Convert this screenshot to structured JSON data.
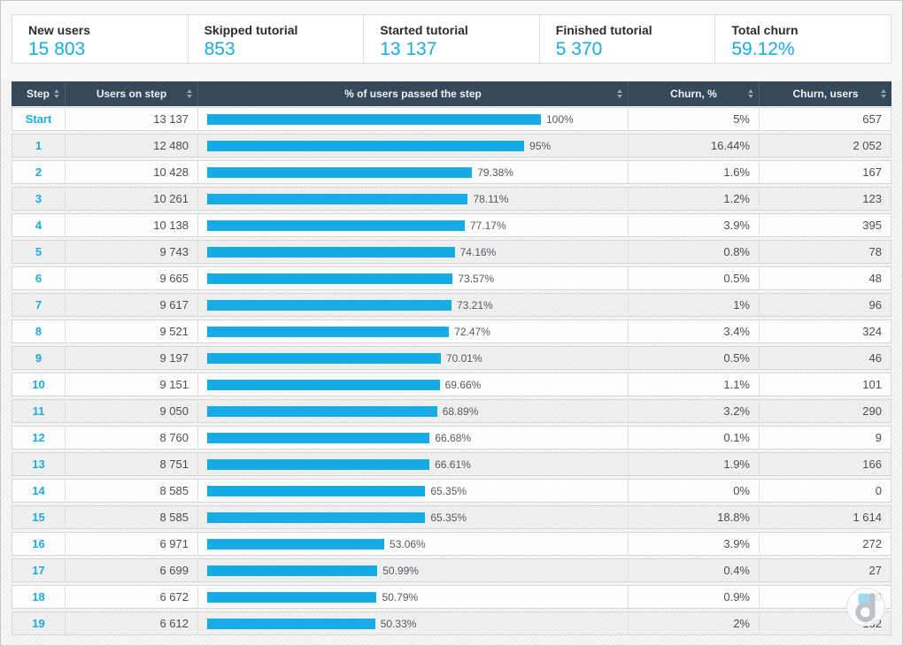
{
  "cards": [
    {
      "label": "New users",
      "value": "15 803"
    },
    {
      "label": "Skipped tutorial",
      "value": "853"
    },
    {
      "label": "Started tutorial",
      "value": "13 137"
    },
    {
      "label": "Finished tutorial",
      "value": "5 370"
    },
    {
      "label": "Total churn",
      "value": "59.12%"
    }
  ],
  "table": {
    "columns": [
      "Step",
      "Users on step",
      "% of users passed the step",
      "Churn, %",
      "Churn, users"
    ],
    "rows": [
      {
        "step": "Start",
        "users": "13 137",
        "passed": "100%",
        "churn_pct": "5%",
        "churn_users": "657"
      },
      {
        "step": "1",
        "users": "12 480",
        "passed": "95%",
        "churn_pct": "16.44%",
        "churn_users": "2 052"
      },
      {
        "step": "2",
        "users": "10 428",
        "passed": "79.38%",
        "churn_pct": "1.6%",
        "churn_users": "167"
      },
      {
        "step": "3",
        "users": "10 261",
        "passed": "78.11%",
        "churn_pct": "1.2%",
        "churn_users": "123"
      },
      {
        "step": "4",
        "users": "10 138",
        "passed": "77.17%",
        "churn_pct": "3.9%",
        "churn_users": "395"
      },
      {
        "step": "5",
        "users": "9 743",
        "passed": "74.16%",
        "churn_pct": "0.8%",
        "churn_users": "78"
      },
      {
        "step": "6",
        "users": "9 665",
        "passed": "73.57%",
        "churn_pct": "0.5%",
        "churn_users": "48"
      },
      {
        "step": "7",
        "users": "9 617",
        "passed": "73.21%",
        "churn_pct": "1%",
        "churn_users": "96"
      },
      {
        "step": "8",
        "users": "9 521",
        "passed": "72.47%",
        "churn_pct": "3.4%",
        "churn_users": "324"
      },
      {
        "step": "9",
        "users": "9 197",
        "passed": "70.01%",
        "churn_pct": "0.5%",
        "churn_users": "46"
      },
      {
        "step": "10",
        "users": "9 151",
        "passed": "69.66%",
        "churn_pct": "1.1%",
        "churn_users": "101"
      },
      {
        "step": "11",
        "users": "9 050",
        "passed": "68.89%",
        "churn_pct": "3.2%",
        "churn_users": "290"
      },
      {
        "step": "12",
        "users": "8 760",
        "passed": "66.68%",
        "churn_pct": "0.1%",
        "churn_users": "9"
      },
      {
        "step": "13",
        "users": "8 751",
        "passed": "66.61%",
        "churn_pct": "1.9%",
        "churn_users": "166"
      },
      {
        "step": "14",
        "users": "8 585",
        "passed": "65.35%",
        "churn_pct": "0%",
        "churn_users": "0"
      },
      {
        "step": "15",
        "users": "8 585",
        "passed": "65.35%",
        "churn_pct": "18.8%",
        "churn_users": "1 614"
      },
      {
        "step": "16",
        "users": "6 971",
        "passed": "53.06%",
        "churn_pct": "3.9%",
        "churn_users": "272"
      },
      {
        "step": "17",
        "users": "6 699",
        "passed": "50.99%",
        "churn_pct": "0.4%",
        "churn_users": "27"
      },
      {
        "step": "18",
        "users": "6 672",
        "passed": "50.79%",
        "churn_pct": "0.9%",
        "churn_users": "60"
      },
      {
        "step": "19",
        "users": "6 612",
        "passed": "50.33%",
        "churn_pct": "2%",
        "churn_users": "132"
      }
    ]
  },
  "watermark": {
    "letter": "d"
  },
  "colors": {
    "accent": "#15abe6",
    "header_bg": "#36495a"
  }
}
